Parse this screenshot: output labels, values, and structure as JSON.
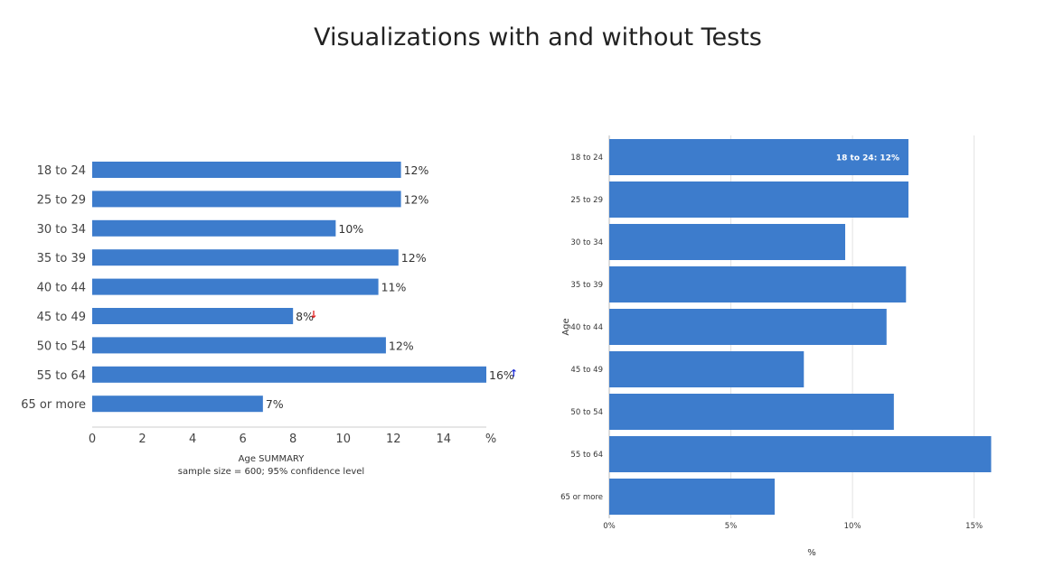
{
  "title": "Visualizations with and without Tests",
  "chart_data": [
    {
      "type": "bar",
      "orientation": "horizontal",
      "categories": [
        "18 to 24",
        "25 to 29",
        "30 to 34",
        "35 to 39",
        "40 to 44",
        "45 to 49",
        "50 to 54",
        "55 to 64",
        "65 or more"
      ],
      "values": [
        12.3,
        12.3,
        9.7,
        12.2,
        11.4,
        8.0,
        11.7,
        15.7,
        6.8
      ],
      "value_labels": [
        "12%",
        "12%",
        "10%",
        "12%",
        "11%",
        "8%",
        "12%",
        "16%",
        "7%"
      ],
      "test_flags": [
        "",
        "",
        "",
        "",
        "",
        "down",
        "",
        "up",
        ""
      ],
      "xticks": [
        "0",
        "2",
        "4",
        "6",
        "8",
        "10",
        "12",
        "14"
      ],
      "x_unit": "%",
      "xlim": [
        0,
        15.7
      ],
      "xlabel": "Age SUMMARY",
      "subtitle": "sample size = 600; 95% confidence level",
      "bar_color": "#3d7ccc",
      "down_color": "#e02020",
      "up_color": "#1f2fd6",
      "grid": false
    },
    {
      "type": "bar",
      "orientation": "horizontal",
      "categories": [
        "18 to 24",
        "25 to 29",
        "30 to 34",
        "35 to 39",
        "40 to 44",
        "45 to 49",
        "50 to 54",
        "55 to 64",
        "65 or more"
      ],
      "values": [
        12.3,
        12.3,
        9.7,
        12.2,
        11.4,
        8.0,
        11.7,
        15.7,
        6.8
      ],
      "tooltip": "18 to 24: 12%",
      "xticks": [
        "0%",
        "5%",
        "10%",
        "15%"
      ],
      "xtick_values": [
        0,
        5,
        10,
        15
      ],
      "xlim": [
        0,
        16.5
      ],
      "xlabel": "%",
      "ylabel": "Age",
      "bar_color": "#3d7ccc",
      "grid": true
    }
  ]
}
